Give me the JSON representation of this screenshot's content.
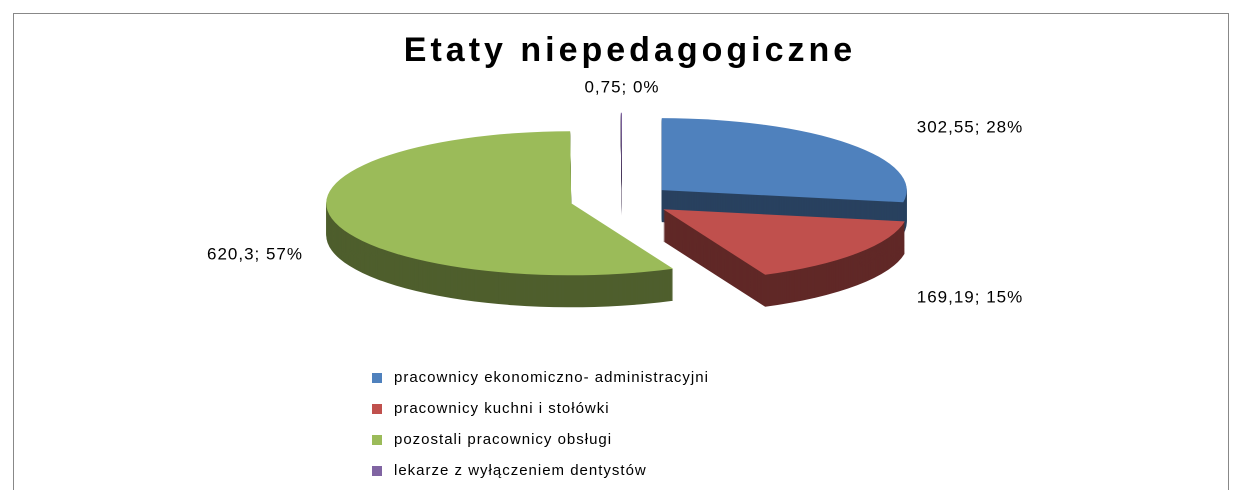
{
  "chart_data": {
    "type": "pie",
    "title": "Etaty niepedagogiczne",
    "categories": [
      "pracownicy ekonomiczno- administracyjni",
      "pracownicy kuchni i stołówki",
      "pozostali pracownicy obsługi",
      "lekarze z wyłączeniem dentystów"
    ],
    "values": [
      302.55,
      169.19,
      620.3,
      0.75
    ],
    "value_labels": [
      "302,55; 28%",
      "169,19; 15%",
      "620,3; 57%",
      "0,75; 0%"
    ],
    "colors": [
      "#4f81bd",
      "#c0504d",
      "#9bbb59",
      "#8064a2"
    ],
    "legend": "bottom",
    "three_d": true,
    "exploded": true
  }
}
